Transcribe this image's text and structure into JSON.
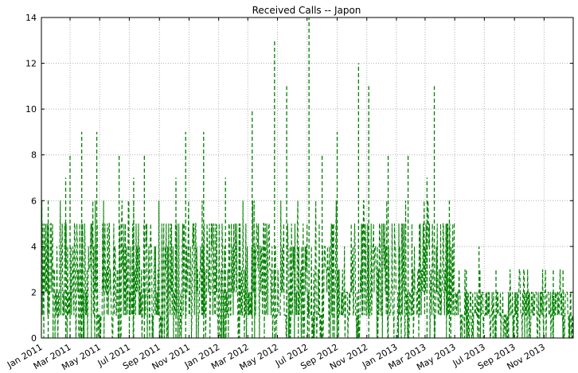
{
  "chart_data": {
    "type": "line",
    "title": "Received Calls -- Japon",
    "xlabel": "",
    "ylabel": "",
    "x_range": [
      "2011-01-01",
      "2013-12-31"
    ],
    "ylim": [
      0,
      14
    ],
    "grid": true,
    "legend": "none",
    "x_ticks": [
      "Jan 2011",
      "Mar 2011",
      "May 2011",
      "Jul 2011",
      "Sep 2011",
      "Nov 2011",
      "Jan 2012",
      "Mar 2012",
      "May 2012",
      "Jul 2012",
      "Sep 2012",
      "Nov 2012",
      "Jan 2013",
      "Mar 2013",
      "May 2013",
      "Jul 2013",
      "Sep 2013",
      "Nov 2013"
    ],
    "x_tick_dates": [
      "2011-01-01",
      "2011-03-01",
      "2011-05-01",
      "2011-07-01",
      "2011-09-01",
      "2011-11-01",
      "2012-01-01",
      "2012-03-01",
      "2012-05-01",
      "2012-07-01",
      "2012-09-01",
      "2012-11-01",
      "2013-01-01",
      "2013-03-01",
      "2013-05-01",
      "2013-07-01",
      "2013-09-01",
      "2013-11-01"
    ],
    "y_ticks": [
      "0",
      "2",
      "4",
      "6",
      "8",
      "10",
      "12",
      "14"
    ],
    "series": [
      {
        "color": "#008000",
        "style": "dashed",
        "peaks": [
          {
            "x": "2011-01-15",
            "y": 6
          },
          {
            "x": "2011-02-20",
            "y": 7
          },
          {
            "x": "2011-03-01",
            "y": 8
          },
          {
            "x": "2011-03-25",
            "y": 9
          },
          {
            "x": "2011-04-25",
            "y": 9
          },
          {
            "x": "2011-06-10",
            "y": 8
          },
          {
            "x": "2011-07-10",
            "y": 7
          },
          {
            "x": "2011-08-01",
            "y": 8
          },
          {
            "x": "2011-10-05",
            "y": 7
          },
          {
            "x": "2011-10-25",
            "y": 9
          },
          {
            "x": "2011-12-01",
            "y": 9
          },
          {
            "x": "2012-01-15",
            "y": 7
          },
          {
            "x": "2012-03-10",
            "y": 10
          },
          {
            "x": "2012-04-25",
            "y": 13
          },
          {
            "x": "2012-05-20",
            "y": 11
          },
          {
            "x": "2012-07-05",
            "y": 14
          },
          {
            "x": "2012-08-01",
            "y": 8
          },
          {
            "x": "2012-09-01",
            "y": 9
          },
          {
            "x": "2012-10-15",
            "y": 12
          },
          {
            "x": "2012-11-05",
            "y": 11
          },
          {
            "x": "2012-12-15",
            "y": 8
          },
          {
            "x": "2013-01-25",
            "y": 8
          },
          {
            "x": "2013-03-05",
            "y": 7
          },
          {
            "x": "2013-03-20",
            "y": 11
          },
          {
            "x": "2013-04-20",
            "y": 6
          },
          {
            "x": "2013-05-25",
            "y": 3
          },
          {
            "x": "2013-06-20",
            "y": 4
          },
          {
            "x": "2013-07-25",
            "y": 3
          },
          {
            "x": "2013-08-20",
            "y": 2
          },
          {
            "x": "2013-10-01",
            "y": 2
          },
          {
            "x": "2013-11-20",
            "y": 3
          },
          {
            "x": "2013-12-10",
            "y": 3
          }
        ],
        "typical_band": [
          {
            "from": "2011-01-01",
            "to": "2012-12-31",
            "low": 0,
            "high": 4
          },
          {
            "from": "2013-01-01",
            "to": "2013-04-30",
            "low": 0,
            "high": 4
          },
          {
            "from": "2013-05-01",
            "to": "2013-12-31",
            "low": 0,
            "high": 1
          }
        ]
      }
    ]
  }
}
